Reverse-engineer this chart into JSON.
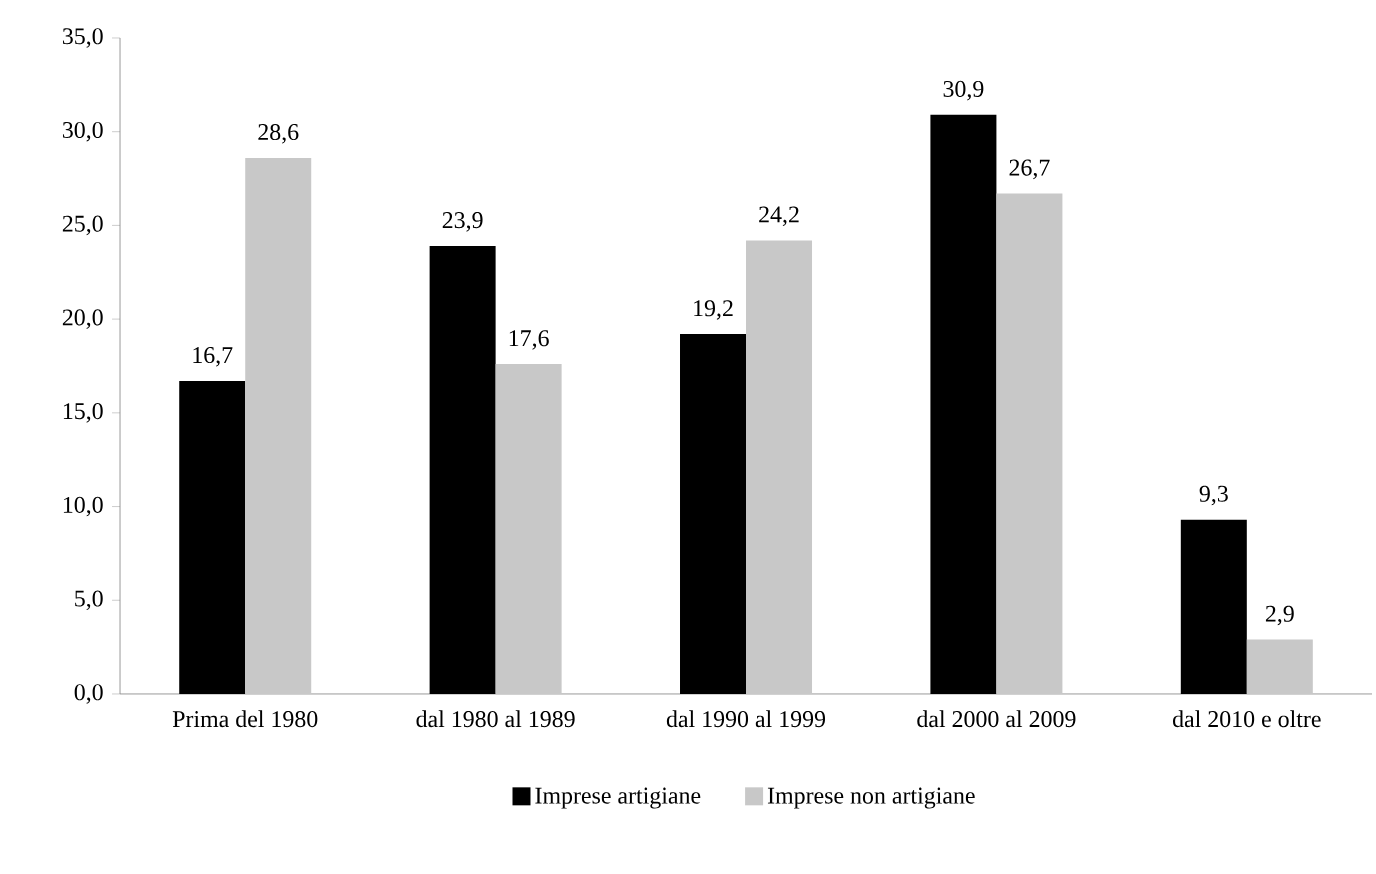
{
  "chart_data": {
    "type": "bar",
    "categories": [
      "Prima del 1980",
      "dal 1980 al 1989",
      "dal 1990 al 1999",
      "dal 2000 al 2009",
      "dal 2010 e oltre"
    ],
    "series": [
      {
        "name": "Imprese artigiane",
        "color": "#000000",
        "values": [
          16.7,
          23.9,
          19.2,
          30.9,
          9.3
        ],
        "value_labels": [
          "16,7",
          "23,9",
          "19,2",
          "30,9",
          "9,3"
        ]
      },
      {
        "name": "Imprese non artigiane",
        "color": "#c8c8c8",
        "values": [
          28.6,
          17.6,
          24.2,
          26.7,
          2.9
        ],
        "value_labels": [
          "28,6",
          "17,6",
          "24,2",
          "26,7",
          "2,9"
        ]
      }
    ],
    "ylim": [
      0,
      35
    ],
    "yticks": [
      {
        "value": 0,
        "label": "0,0"
      },
      {
        "value": 5,
        "label": "5,0"
      },
      {
        "value": 10,
        "label": "10,0"
      },
      {
        "value": 15,
        "label": "15,0"
      },
      {
        "value": 20,
        "label": "20,0"
      },
      {
        "value": 25,
        "label": "25,0"
      },
      {
        "value": 30,
        "label": "30,0"
      },
      {
        "value": 35,
        "label": "35,0"
      }
    ],
    "grid": false,
    "legend": "bottom"
  }
}
